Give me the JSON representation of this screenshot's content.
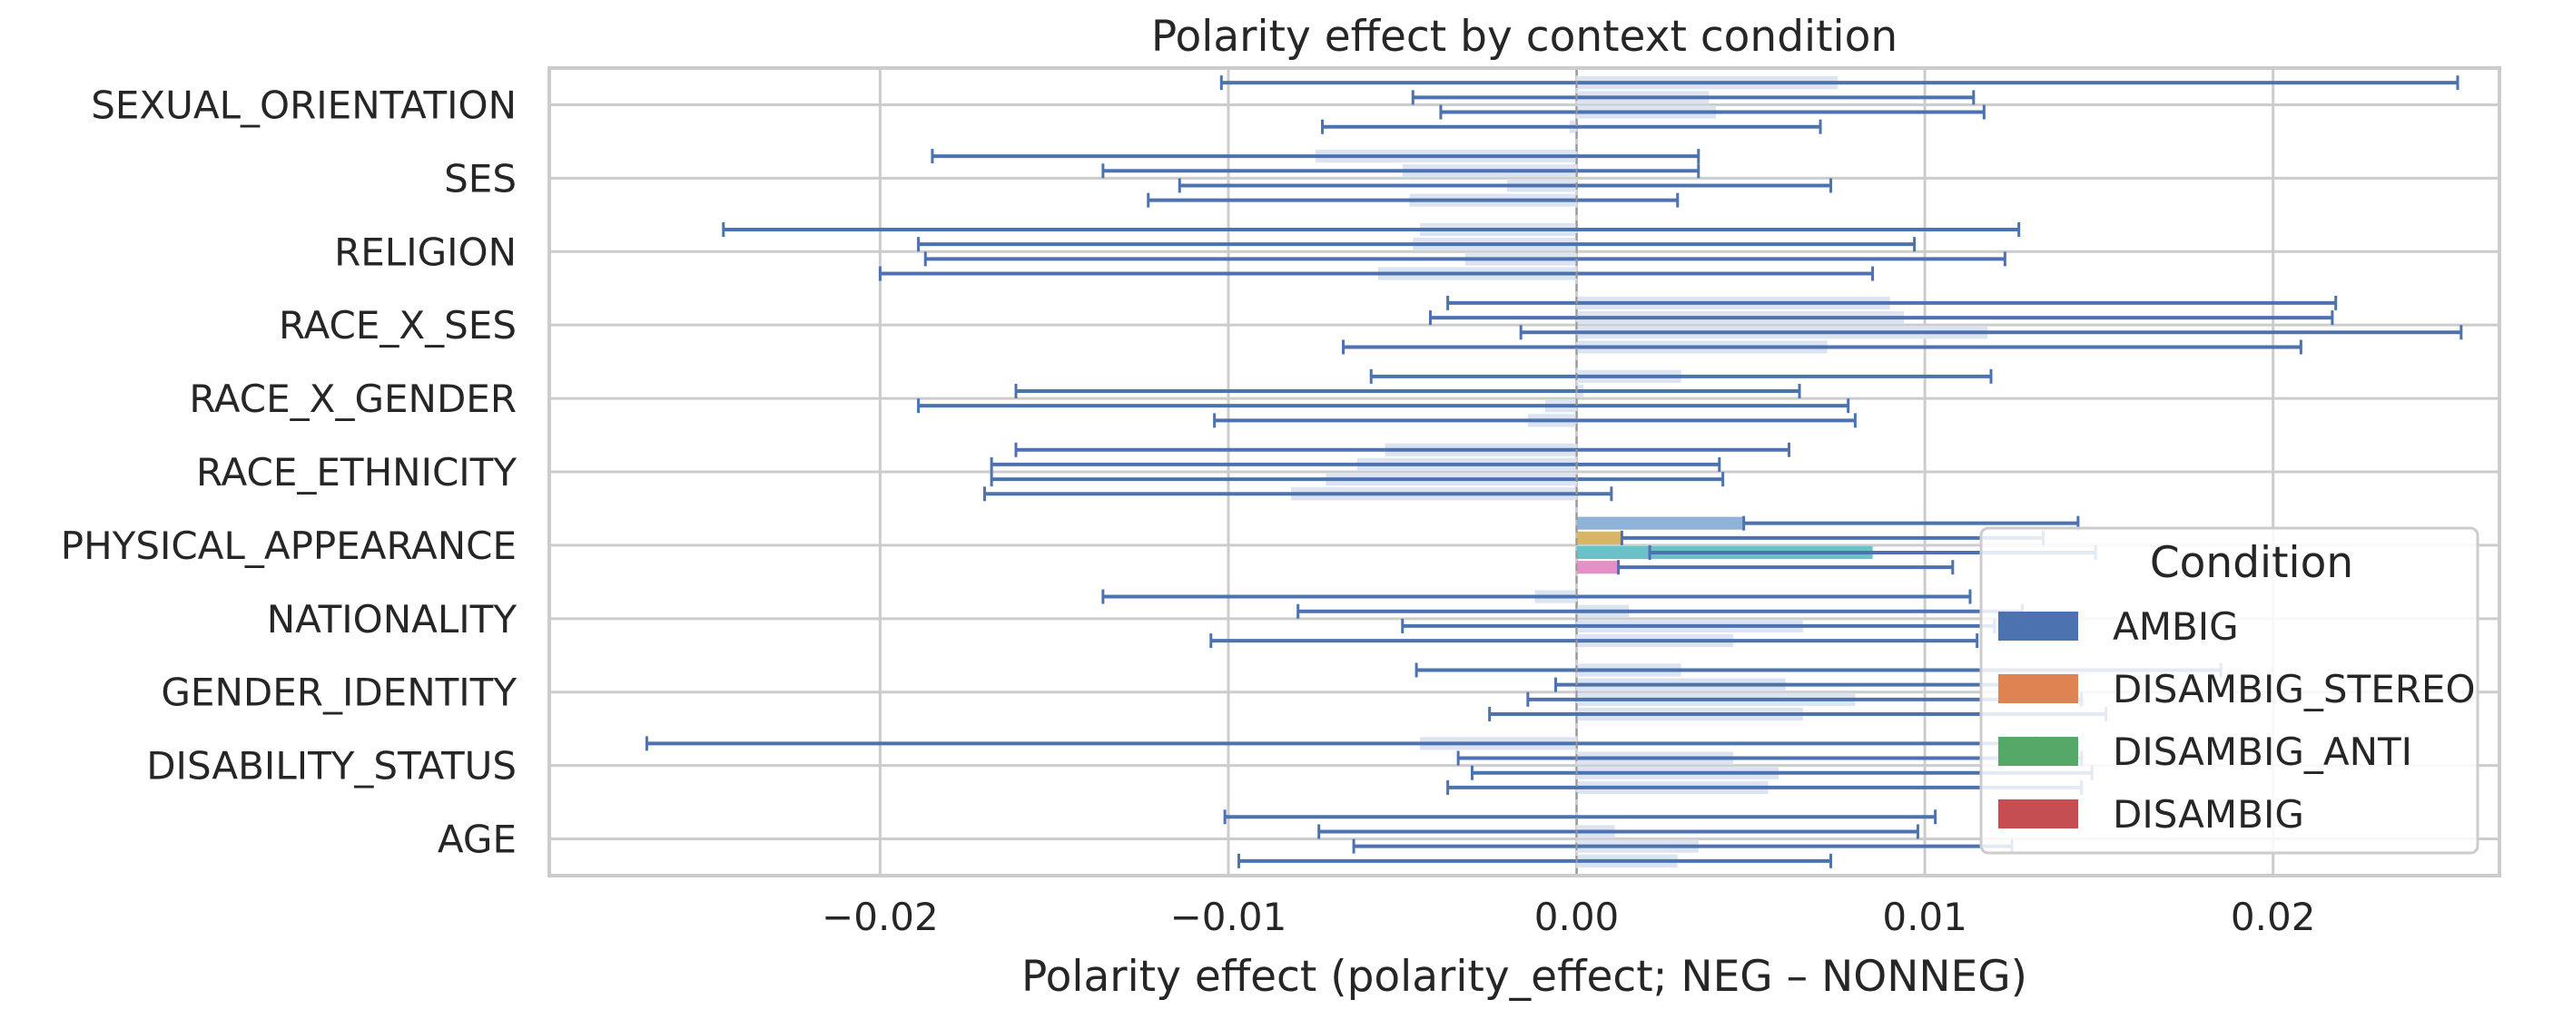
{
  "chart_data": {
    "type": "bar",
    "orientation": "horizontal",
    "title": "Polarity effect by context condition",
    "xlabel": "Polarity effect (polarity_effect; NEG – NONNEG)",
    "ylabel": "",
    "xlim": [
      -0.0295,
      0.0265
    ],
    "xticks": [
      -0.02,
      -0.01,
      0.0,
      0.01,
      0.02
    ],
    "xtick_labels": [
      "−0.02",
      "−0.01",
      "0.00",
      "0.01",
      "0.02"
    ],
    "grid": true,
    "categories": [
      "SEXUAL_ORIENTATION",
      "SES",
      "RELIGION",
      "RACE_X_SES",
      "RACE_X_GENDER",
      "RACE_ETHNICITY",
      "PHYSICAL_APPEARANCE",
      "NATIONALITY",
      "GENDER_IDENTITY",
      "DISABILITY_STATUS",
      "AGE"
    ],
    "legend": {
      "title": "Condition",
      "placement": "lower-right",
      "entries": [
        "AMBIG",
        "DISAMBIG_STEREO",
        "DISAMBIG_ANTI",
        "DISAMBIG"
      ]
    },
    "series": [
      {
        "name": "AMBIG",
        "color": "#4c72b0",
        "values": [
          0.0075,
          -0.0075,
          -0.0045,
          0.009,
          0.003,
          -0.0055,
          0.0048,
          -0.0012,
          0.003,
          -0.0045,
          0.0
        ],
        "err_low": [
          -0.0102,
          -0.0185,
          -0.0245,
          -0.0037,
          -0.0059,
          -0.0161,
          0.0048,
          -0.0136,
          -0.0046,
          -0.0267,
          -0.0101
        ],
        "err_high": [
          0.0253,
          0.0035,
          0.0127,
          0.0218,
          0.0119,
          0.0061,
          0.0144,
          0.0113,
          0.0185,
          0.0132,
          0.0103
        ]
      },
      {
        "name": "DISAMBIG_STEREO",
        "color": "#dd8452",
        "values": [
          0.0038,
          -0.005,
          -0.0047,
          0.0094,
          0.0002,
          -0.0063,
          0.0013,
          0.0015,
          0.006,
          0.0045,
          0.0011
        ],
        "err_low": [
          -0.0047,
          -0.0136,
          -0.0189,
          -0.0042,
          -0.0161,
          -0.0168,
          0.0013,
          -0.008,
          -0.0006,
          -0.0034,
          -0.0074
        ],
        "err_high": [
          0.0114,
          0.0035,
          0.0097,
          0.0217,
          0.0064,
          0.0041,
          0.0134,
          0.0128,
          0.0135,
          0.0145,
          0.0098
        ]
      },
      {
        "name": "DISAMBIG_ANTI",
        "color": "#55a868",
        "values": [
          0.004,
          -0.002,
          -0.0032,
          0.0118,
          -0.0009,
          -0.0072,
          0.0085,
          0.0065,
          0.008,
          0.0058,
          0.0035
        ],
        "err_low": [
          -0.0039,
          -0.0114,
          -0.0187,
          -0.0016,
          -0.0189,
          -0.0168,
          0.0021,
          -0.005,
          -0.0014,
          -0.003,
          -0.0064
        ],
        "err_high": [
          0.0117,
          0.0073,
          0.0123,
          0.0254,
          0.0078,
          0.0042,
          0.0149,
          0.012,
          0.0145,
          0.0148,
          0.0125
        ]
      },
      {
        "name": "DISAMBIG",
        "color": "#c44e52",
        "values": [
          -0.0002,
          -0.0048,
          -0.0057,
          0.0072,
          -0.0014,
          -0.0082,
          0.0012,
          0.0045,
          0.0065,
          0.0055,
          0.0029
        ],
        "err_low": [
          -0.0073,
          -0.0123,
          -0.02,
          -0.0067,
          -0.0104,
          -0.017,
          0.0012,
          -0.0105,
          -0.0025,
          -0.0037,
          -0.0097
        ],
        "err_high": [
          0.007,
          0.0029,
          0.0085,
          0.0208,
          0.008,
          0.001,
          0.0108,
          0.0115,
          0.0152,
          0.0145,
          0.0073
        ]
      }
    ],
    "reference_line": {
      "x": 0.0,
      "style": "dashed",
      "color": "#999999"
    },
    "bar_overlay_colors": [
      "#dbe4f0",
      "#8fb3d6",
      "#d8b664",
      "#6cc0c8",
      "#e58fc7"
    ]
  }
}
